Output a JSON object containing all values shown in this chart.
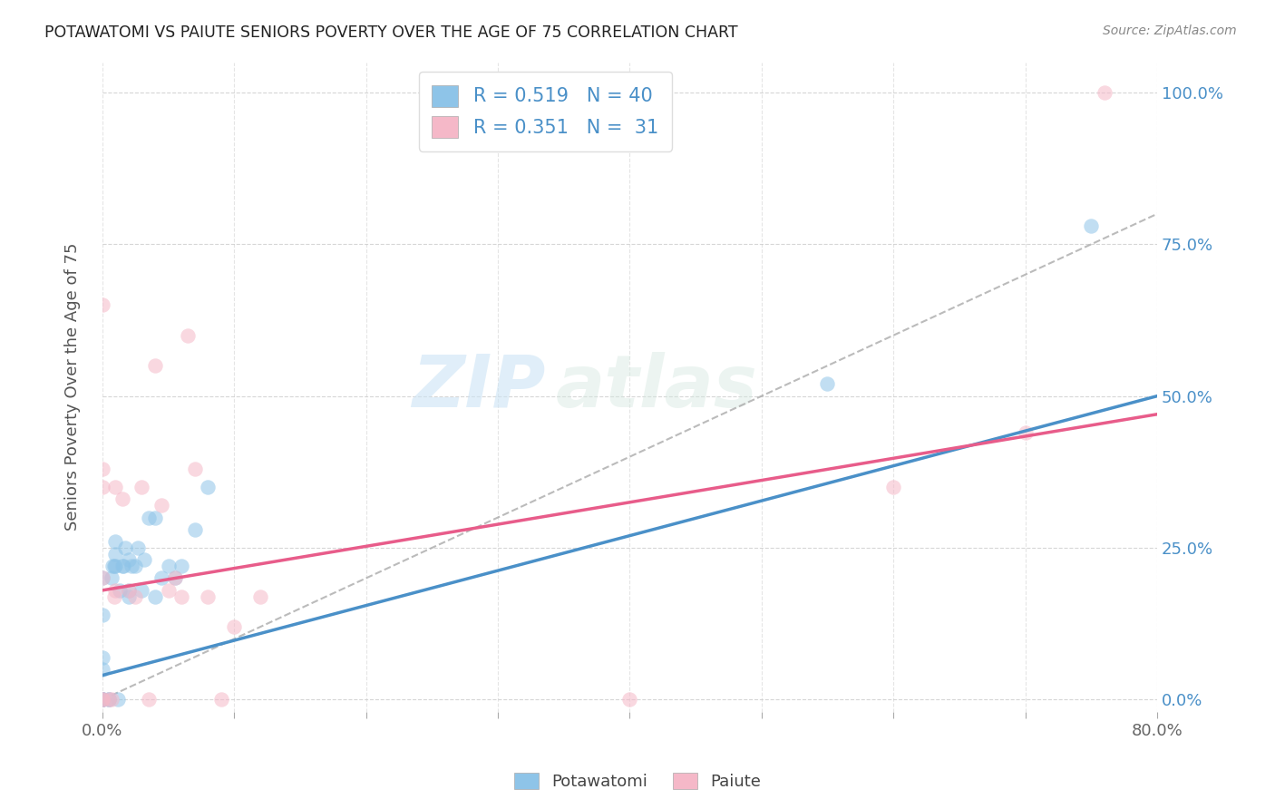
{
  "title": "POTAWATOMI VS PAIUTE SENIORS POVERTY OVER THE AGE OF 75 CORRELATION CHART",
  "source": "Source: ZipAtlas.com",
  "ylabel": "Seniors Poverty Over the Age of 75",
  "xlim": [
    0,
    0.8
  ],
  "ylim": [
    -0.02,
    1.05
  ],
  "legend_label1": "Potawatomi",
  "legend_label2": "Paiute",
  "r1": "0.519",
  "n1": "40",
  "r2": "0.351",
  "n2": "31",
  "color_blue": "#8ec4e8",
  "color_pink": "#f5b8c8",
  "color_blue_line": "#4a90c8",
  "color_pink_line": "#e85c8a",
  "color_diag": "#aaaaaa",
  "background_color": "#ffffff",
  "watermark_zip": "ZIP",
  "watermark_atlas": "atlas",
  "blue_line_x0": 0.0,
  "blue_line_y0": 0.04,
  "blue_line_x1": 0.8,
  "blue_line_y1": 0.5,
  "pink_line_x0": 0.0,
  "pink_line_y0": 0.18,
  "pink_line_x1": 0.8,
  "pink_line_y1": 0.47,
  "potawatomi_x": [
    0.0,
    0.0,
    0.0,
    0.0,
    0.0,
    0.0,
    0.0,
    0.0,
    0.005,
    0.005,
    0.007,
    0.008,
    0.009,
    0.01,
    0.01,
    0.01,
    0.012,
    0.013,
    0.015,
    0.016,
    0.017,
    0.02,
    0.02,
    0.02,
    0.022,
    0.025,
    0.027,
    0.03,
    0.032,
    0.035,
    0.04,
    0.04,
    0.045,
    0.05,
    0.055,
    0.06,
    0.07,
    0.08,
    0.55,
    0.75
  ],
  "potawatomi_y": [
    0.0,
    0.0,
    0.0,
    0.0,
    0.05,
    0.07,
    0.14,
    0.2,
    0.0,
    0.0,
    0.2,
    0.22,
    0.22,
    0.22,
    0.24,
    0.26,
    0.0,
    0.18,
    0.22,
    0.22,
    0.25,
    0.18,
    0.23,
    0.17,
    0.22,
    0.22,
    0.25,
    0.18,
    0.23,
    0.3,
    0.17,
    0.3,
    0.2,
    0.22,
    0.2,
    0.22,
    0.28,
    0.35,
    0.52,
    0.78
  ],
  "paiute_x": [
    0.0,
    0.0,
    0.0,
    0.0,
    0.0,
    0.0,
    0.005,
    0.007,
    0.009,
    0.01,
    0.01,
    0.015,
    0.02,
    0.025,
    0.03,
    0.035,
    0.04,
    0.045,
    0.05,
    0.055,
    0.06,
    0.065,
    0.07,
    0.08,
    0.09,
    0.1,
    0.12,
    0.4,
    0.6,
    0.7,
    0.76
  ],
  "paiute_y": [
    0.0,
    0.0,
    0.2,
    0.35,
    0.38,
    0.65,
    0.0,
    0.0,
    0.17,
    0.35,
    0.18,
    0.33,
    0.18,
    0.17,
    0.35,
    0.0,
    0.55,
    0.32,
    0.18,
    0.2,
    0.17,
    0.6,
    0.38,
    0.17,
    0.0,
    0.12,
    0.17,
    0.0,
    0.35,
    0.44,
    1.0
  ]
}
